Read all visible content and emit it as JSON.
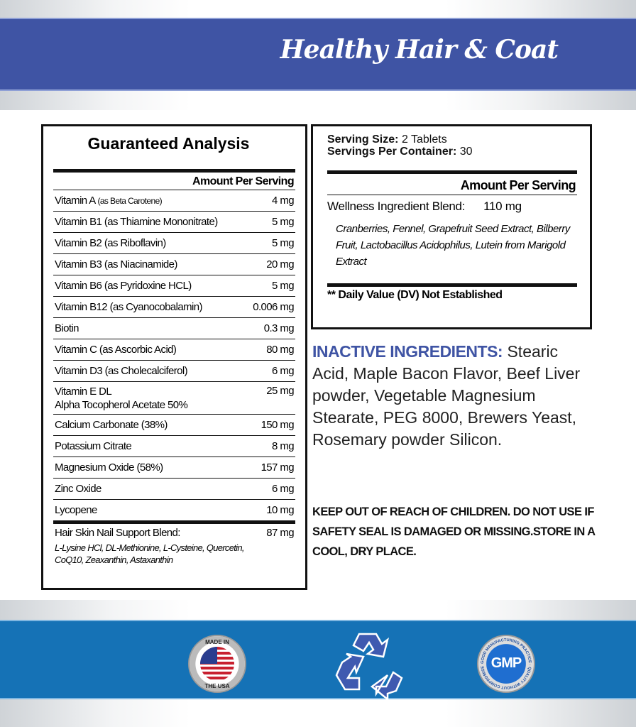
{
  "header": {
    "title": "Healthy Hair & Coat",
    "band_color": "#3f54a4"
  },
  "guaranteed_analysis": {
    "title": "Guaranteed Analysis",
    "amount_header": "Amount Per Serving",
    "rows": [
      {
        "name": "Vitamin A",
        "note": "(as Beta Carotene)",
        "amount": "4 mg"
      },
      {
        "name": "Vitamin B1 (as Thiamine Mononitrate)",
        "amount": "5 mg"
      },
      {
        "name": "Vitamin B2 (as Riboflavin)",
        "amount": "5 mg"
      },
      {
        "name": "Vitamin B3 (as Niacinamide)",
        "amount": "20 mg"
      },
      {
        "name": "Vitamin B6 (as Pyridoxine HCL)",
        "amount": "5 mg"
      },
      {
        "name": "Vitamin B12 (as Cyanocobalamin)",
        "amount": "0.006 mg"
      },
      {
        "name": "Biotin",
        "amount": "0.3 mg"
      },
      {
        "name": "Vitamin C (as Ascorbic Acid)",
        "amount": "80 mg"
      },
      {
        "name": "Vitamin D3 (as Cholecalciferol)",
        "amount": "6 mg"
      },
      {
        "name": "Vitamin E DL",
        "name2": "Alpha Tocopherol Acetate 50%",
        "amount": "25 mg"
      },
      {
        "name": "Calcium Carbonate (38%)",
        "amount": "150 mg"
      },
      {
        "name": "Potassium Citrate",
        "amount": "8 mg"
      },
      {
        "name": "Magnesium Oxide (58%)",
        "amount": "157 mg"
      },
      {
        "name": "Zinc Oxide",
        "amount": "6 mg"
      },
      {
        "name": "Lycopene",
        "amount": "10 mg"
      },
      {
        "name": "Hair Skin Nail Support Blend:",
        "amount": "87 mg"
      }
    ],
    "blend_ingredients": [
      "L-Lysine HCl, DL-Methionine, L-Cysteine, Quercetin,",
      "CoQ10, Zeaxanthin, Astaxanthin"
    ]
  },
  "supplement_facts": {
    "serving_size_label": "Serving Size:",
    "serving_size": "2 Tablets",
    "servings_label": "Servings Per Container:",
    "servings": "30",
    "amount_header": "Amount Per Serving",
    "blend_name": "Wellness Ingredient Blend:",
    "blend_amount": "110 mg",
    "blend_ingredients": "Cranberries, Fennel, Grapefruit Seed Extract, Bilberry Fruit, Lactobacillus Acidophilus, Lutein from Marigold Extract",
    "dv_note": "** Daily Value (DV) Not Established"
  },
  "inactive": {
    "label": "INACTIVE INGREDIENTS:",
    "text": "Stearic Acid, Maple Bacon Flavor, Beef Liver powder, Vegetable Magnesium Stearate, PEG 8000, Brewers Yeast, Rosemary powder Silicon."
  },
  "warning": "KEEP OUT OF REACH OF CHILDREN. DO NOT USE IF SAFETY SEAL IS DAMAGED OR MISSING.STORE IN A COOL, DRY PLACE.",
  "badges": {
    "usa_top": "MADE IN",
    "usa_bottom": "THE USA",
    "gmp": "GMP",
    "gmp_ring": "GOOD MANUFACTURING PRACTICE · QUALITY WITHOUT COMPROMISE",
    "recycle_icon": "recycle-icon"
  },
  "footer_band_color": "#1572b6"
}
